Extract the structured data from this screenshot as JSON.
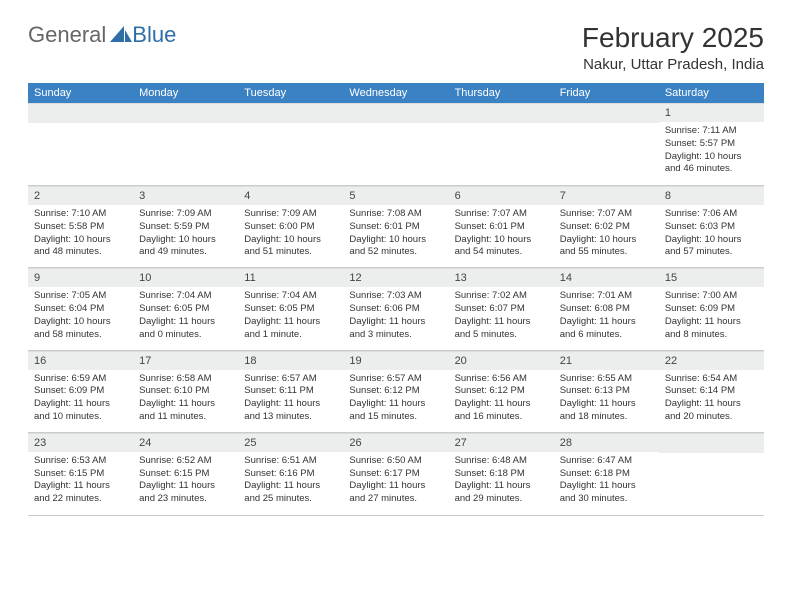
{
  "branding": {
    "word1": "General",
    "word2": "Blue",
    "logo_color": "#2f6fa8"
  },
  "title": {
    "month_year": "February 2025",
    "location": "Nakur, Uttar Pradesh, India"
  },
  "colors": {
    "header_bg": "#3b82c4",
    "header_fg": "#ffffff",
    "daynum_bg": "#eceded",
    "border": "#c8ccd0",
    "text": "#333333"
  },
  "weekdays": [
    "Sunday",
    "Monday",
    "Tuesday",
    "Wednesday",
    "Thursday",
    "Friday",
    "Saturday"
  ],
  "weeks": [
    [
      {
        "blank": true
      },
      {
        "blank": true
      },
      {
        "blank": true
      },
      {
        "blank": true
      },
      {
        "blank": true
      },
      {
        "blank": true
      },
      {
        "n": "1",
        "sunrise": "Sunrise: 7:11 AM",
        "sunset": "Sunset: 5:57 PM",
        "daylight": "Daylight: 10 hours and 46 minutes."
      }
    ],
    [
      {
        "n": "2",
        "sunrise": "Sunrise: 7:10 AM",
        "sunset": "Sunset: 5:58 PM",
        "daylight": "Daylight: 10 hours and 48 minutes."
      },
      {
        "n": "3",
        "sunrise": "Sunrise: 7:09 AM",
        "sunset": "Sunset: 5:59 PM",
        "daylight": "Daylight: 10 hours and 49 minutes."
      },
      {
        "n": "4",
        "sunrise": "Sunrise: 7:09 AM",
        "sunset": "Sunset: 6:00 PM",
        "daylight": "Daylight: 10 hours and 51 minutes."
      },
      {
        "n": "5",
        "sunrise": "Sunrise: 7:08 AM",
        "sunset": "Sunset: 6:01 PM",
        "daylight": "Daylight: 10 hours and 52 minutes."
      },
      {
        "n": "6",
        "sunrise": "Sunrise: 7:07 AM",
        "sunset": "Sunset: 6:01 PM",
        "daylight": "Daylight: 10 hours and 54 minutes."
      },
      {
        "n": "7",
        "sunrise": "Sunrise: 7:07 AM",
        "sunset": "Sunset: 6:02 PM",
        "daylight": "Daylight: 10 hours and 55 minutes."
      },
      {
        "n": "8",
        "sunrise": "Sunrise: 7:06 AM",
        "sunset": "Sunset: 6:03 PM",
        "daylight": "Daylight: 10 hours and 57 minutes."
      }
    ],
    [
      {
        "n": "9",
        "sunrise": "Sunrise: 7:05 AM",
        "sunset": "Sunset: 6:04 PM",
        "daylight": "Daylight: 10 hours and 58 minutes."
      },
      {
        "n": "10",
        "sunrise": "Sunrise: 7:04 AM",
        "sunset": "Sunset: 6:05 PM",
        "daylight": "Daylight: 11 hours and 0 minutes."
      },
      {
        "n": "11",
        "sunrise": "Sunrise: 7:04 AM",
        "sunset": "Sunset: 6:05 PM",
        "daylight": "Daylight: 11 hours and 1 minute."
      },
      {
        "n": "12",
        "sunrise": "Sunrise: 7:03 AM",
        "sunset": "Sunset: 6:06 PM",
        "daylight": "Daylight: 11 hours and 3 minutes."
      },
      {
        "n": "13",
        "sunrise": "Sunrise: 7:02 AM",
        "sunset": "Sunset: 6:07 PM",
        "daylight": "Daylight: 11 hours and 5 minutes."
      },
      {
        "n": "14",
        "sunrise": "Sunrise: 7:01 AM",
        "sunset": "Sunset: 6:08 PM",
        "daylight": "Daylight: 11 hours and 6 minutes."
      },
      {
        "n": "15",
        "sunrise": "Sunrise: 7:00 AM",
        "sunset": "Sunset: 6:09 PM",
        "daylight": "Daylight: 11 hours and 8 minutes."
      }
    ],
    [
      {
        "n": "16",
        "sunrise": "Sunrise: 6:59 AM",
        "sunset": "Sunset: 6:09 PM",
        "daylight": "Daylight: 11 hours and 10 minutes."
      },
      {
        "n": "17",
        "sunrise": "Sunrise: 6:58 AM",
        "sunset": "Sunset: 6:10 PM",
        "daylight": "Daylight: 11 hours and 11 minutes."
      },
      {
        "n": "18",
        "sunrise": "Sunrise: 6:57 AM",
        "sunset": "Sunset: 6:11 PM",
        "daylight": "Daylight: 11 hours and 13 minutes."
      },
      {
        "n": "19",
        "sunrise": "Sunrise: 6:57 AM",
        "sunset": "Sunset: 6:12 PM",
        "daylight": "Daylight: 11 hours and 15 minutes."
      },
      {
        "n": "20",
        "sunrise": "Sunrise: 6:56 AM",
        "sunset": "Sunset: 6:12 PM",
        "daylight": "Daylight: 11 hours and 16 minutes."
      },
      {
        "n": "21",
        "sunrise": "Sunrise: 6:55 AM",
        "sunset": "Sunset: 6:13 PM",
        "daylight": "Daylight: 11 hours and 18 minutes."
      },
      {
        "n": "22",
        "sunrise": "Sunrise: 6:54 AM",
        "sunset": "Sunset: 6:14 PM",
        "daylight": "Daylight: 11 hours and 20 minutes."
      }
    ],
    [
      {
        "n": "23",
        "sunrise": "Sunrise: 6:53 AM",
        "sunset": "Sunset: 6:15 PM",
        "daylight": "Daylight: 11 hours and 22 minutes."
      },
      {
        "n": "24",
        "sunrise": "Sunrise: 6:52 AM",
        "sunset": "Sunset: 6:15 PM",
        "daylight": "Daylight: 11 hours and 23 minutes."
      },
      {
        "n": "25",
        "sunrise": "Sunrise: 6:51 AM",
        "sunset": "Sunset: 6:16 PM",
        "daylight": "Daylight: 11 hours and 25 minutes."
      },
      {
        "n": "26",
        "sunrise": "Sunrise: 6:50 AM",
        "sunset": "Sunset: 6:17 PM",
        "daylight": "Daylight: 11 hours and 27 minutes."
      },
      {
        "n": "27",
        "sunrise": "Sunrise: 6:48 AM",
        "sunset": "Sunset: 6:18 PM",
        "daylight": "Daylight: 11 hours and 29 minutes."
      },
      {
        "n": "28",
        "sunrise": "Sunrise: 6:47 AM",
        "sunset": "Sunset: 6:18 PM",
        "daylight": "Daylight: 11 hours and 30 minutes."
      },
      {
        "blank": true
      }
    ]
  ]
}
